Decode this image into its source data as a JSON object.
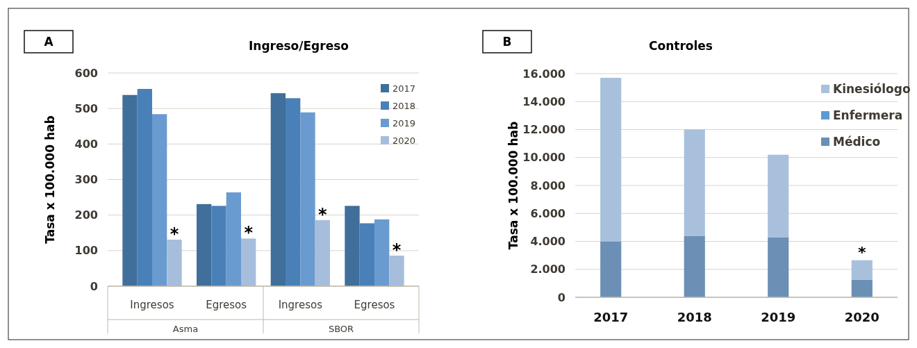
{
  "chart_data": [
    {
      "type": "bar",
      "title": "Ingreso/Egreso",
      "ylabel": "Tasa x 100.000 hab",
      "categories": [
        "Ingresos",
        "Egresos",
        "Ingresos",
        "Egresos"
      ],
      "annotations": [
        "A",
        "Asma",
        "SBOR"
      ],
      "ylim": [
        0,
        600
      ],
      "yticks": [
        0,
        100,
        200,
        300,
        400,
        500,
        600
      ],
      "grid": "y",
      "legend": "top right",
      "series": [
        {
          "name": "2017",
          "color": "#3f6f9a",
          "values": [
            538,
            231,
            543,
            226
          ]
        },
        {
          "name": "2018",
          "color": "#4a80b8",
          "values": [
            555,
            226,
            529,
            177
          ]
        },
        {
          "name": "2019",
          "color": "#6a9bd0",
          "values": [
            484,
            264,
            489,
            188
          ]
        },
        {
          "name": "2020",
          "color": "#a6bedc",
          "values": [
            131,
            134,
            186,
            86
          ],
          "value_labels": [
            "*",
            "*",
            "*",
            "*"
          ]
        }
      ]
    },
    {
      "type": "bar",
      "title": "Controles",
      "ylabel": "Tasa x 100.000 hab",
      "categories": [
        "2017",
        "2018",
        "2019",
        "2020"
      ],
      "annotations": [
        "B"
      ],
      "stacked": true,
      "ylim": [
        0,
        16000
      ],
      "yticks": [
        {
          "value": 0,
          "label": "0"
        },
        {
          "value": 2000,
          "label": "2.000"
        },
        {
          "value": 4000,
          "label": "4.000"
        },
        {
          "value": 6000,
          "label": "6.000"
        },
        {
          "value": 8000,
          "label": "8.000"
        },
        {
          "value": 10000,
          "label": "10.000"
        },
        {
          "value": 12000,
          "label": "12.000"
        },
        {
          "value": 14000,
          "label": "14.000"
        },
        {
          "value": 16000,
          "label": "16.000"
        }
      ],
      "grid": "y",
      "legend": "top right",
      "series": [
        {
          "name": "Médico",
          "color": "#6b8fb5",
          "values": [
            4000,
            4400,
            4300,
            1250
          ]
        },
        {
          "name": "Enfermera",
          "color": "#5b9bd5",
          "values": [
            0,
            0,
            0,
            0
          ]
        },
        {
          "name": "Kinesiólogo",
          "color": "#a9c0dc",
          "values": [
            11700,
            7600,
            5900,
            1400
          ],
          "value_labels": [
            null,
            null,
            null,
            "*"
          ]
        }
      ]
    }
  ]
}
